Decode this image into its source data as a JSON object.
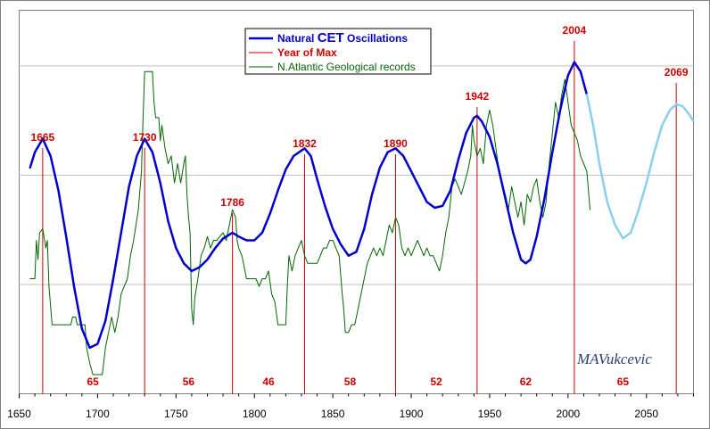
{
  "chart_data": {
    "type": "line",
    "title": "",
    "xlabel": "",
    "ylabel": "",
    "xlim": [
      1650,
      2080
    ],
    "ylim": [
      0,
      100
    ],
    "x_ticks": [
      "1650",
      "1700",
      "1750",
      "1800",
      "1850",
      "1900",
      "1950",
      "2000",
      "2050"
    ],
    "grid": "horizontal",
    "legend_position": "top-center",
    "legend": {
      "natural_prefix": "Natural ",
      "natural_cet": "CET",
      "natural_suffix": " Oscillations",
      "year_of_max": "Year of Max",
      "geological": "N.Atlantic Geological records"
    },
    "colors": {
      "natural": "#0000cc",
      "projection": "#88d0f0",
      "year_of_max": "#cc0000",
      "geological": "#006600",
      "grid": "#c0c0c0"
    },
    "year_of_max": [
      {
        "year": 1665,
        "label": "1665"
      },
      {
        "year": 1730,
        "label": "1730"
      },
      {
        "year": 1786,
        "label": "1786"
      },
      {
        "year": 1832,
        "label": "1832"
      },
      {
        "year": 1890,
        "label": "1890"
      },
      {
        "year": 1942,
        "label": "1942"
      },
      {
        "year": 2004,
        "label": "2004"
      },
      {
        "year": 2069,
        "label": "2069"
      }
    ],
    "interval_labels": [
      {
        "x": 1697,
        "label": "65"
      },
      {
        "x": 1758,
        "label": "56"
      },
      {
        "x": 1809,
        "label": "46"
      },
      {
        "x": 1861,
        "label": "58"
      },
      {
        "x": 1916,
        "label": "52"
      },
      {
        "x": 1973,
        "label": "62"
      },
      {
        "x": 2035,
        "label": "65"
      }
    ],
    "signature": "MAVukcevic",
    "series": [
      {
        "name": "Natural CET Oscillations",
        "style": "natural",
        "points": [
          [
            1657,
            59
          ],
          [
            1660,
            63
          ],
          [
            1665,
            66.5
          ],
          [
            1670,
            62
          ],
          [
            1675,
            53
          ],
          [
            1680,
            41
          ],
          [
            1685,
            28
          ],
          [
            1690,
            17
          ],
          [
            1695,
            12
          ],
          [
            1700,
            13
          ],
          [
            1705,
            19
          ],
          [
            1710,
            30
          ],
          [
            1715,
            42
          ],
          [
            1720,
            54
          ],
          [
            1725,
            62
          ],
          [
            1730,
            66.5
          ],
          [
            1735,
            63
          ],
          [
            1740,
            55
          ],
          [
            1745,
            45
          ],
          [
            1750,
            38
          ],
          [
            1755,
            34
          ],
          [
            1760,
            32
          ],
          [
            1765,
            33
          ],
          [
            1770,
            35
          ],
          [
            1775,
            38
          ],
          [
            1780,
            40.5
          ],
          [
            1786,
            42
          ],
          [
            1790,
            41
          ],
          [
            1795,
            40
          ],
          [
            1800,
            40
          ],
          [
            1805,
            42
          ],
          [
            1810,
            47
          ],
          [
            1815,
            53
          ],
          [
            1820,
            58.5
          ],
          [
            1825,
            62
          ],
          [
            1832,
            64
          ],
          [
            1836,
            62
          ],
          [
            1840,
            56
          ],
          [
            1845,
            49
          ],
          [
            1850,
            43
          ],
          [
            1855,
            39
          ],
          [
            1860,
            36
          ],
          [
            1865,
            37
          ],
          [
            1870,
            43
          ],
          [
            1875,
            52
          ],
          [
            1880,
            59
          ],
          [
            1885,
            63
          ],
          [
            1890,
            64
          ],
          [
            1895,
            62
          ],
          [
            1900,
            58
          ],
          [
            1905,
            54
          ],
          [
            1910,
            50
          ],
          [
            1915,
            48.5
          ],
          [
            1920,
            49
          ],
          [
            1925,
            53
          ],
          [
            1930,
            61
          ],
          [
            1935,
            68
          ],
          [
            1940,
            72
          ],
          [
            1942,
            72.5
          ],
          [
            1945,
            71
          ],
          [
            1950,
            67
          ],
          [
            1955,
            60
          ],
          [
            1960,
            51
          ],
          [
            1965,
            42
          ],
          [
            1970,
            35
          ],
          [
            1973,
            34
          ],
          [
            1976,
            35
          ],
          [
            1980,
            41
          ],
          [
            1985,
            51
          ],
          [
            1990,
            63
          ],
          [
            1995,
            74
          ],
          [
            2000,
            83
          ],
          [
            2004,
            86.5
          ],
          [
            2008,
            84
          ],
          [
            2012,
            78
          ]
        ]
      },
      {
        "name": "Natural CET Oscillations (projection)",
        "style": "projection",
        "points": [
          [
            2012,
            78
          ],
          [
            2016,
            70
          ],
          [
            2020,
            60
          ],
          [
            2025,
            50
          ],
          [
            2030,
            44
          ],
          [
            2035,
            40.5
          ],
          [
            2040,
            42
          ],
          [
            2045,
            48
          ],
          [
            2050,
            55
          ],
          [
            2055,
            63
          ],
          [
            2060,
            70
          ],
          [
            2065,
            74
          ],
          [
            2069,
            75.5
          ],
          [
            2073,
            75
          ],
          [
            2077,
            73
          ],
          [
            2080,
            71
          ]
        ]
      },
      {
        "name": "N.Atlantic Geological records",
        "style": "geological",
        "points": [
          [
            1657,
            30
          ],
          [
            1660,
            30
          ],
          [
            1661,
            40
          ],
          [
            1662,
            35
          ],
          [
            1663,
            42
          ],
          [
            1665,
            43
          ],
          [
            1667,
            38
          ],
          [
            1668,
            40
          ],
          [
            1669,
            28
          ],
          [
            1671,
            18
          ],
          [
            1676,
            18
          ],
          [
            1683,
            18
          ],
          [
            1684,
            20
          ],
          [
            1686,
            20
          ],
          [
            1687,
            18
          ],
          [
            1692,
            18
          ],
          [
            1693,
            12
          ],
          [
            1695,
            8
          ],
          [
            1697,
            5
          ],
          [
            1700,
            5
          ],
          [
            1703,
            5
          ],
          [
            1705,
            12
          ],
          [
            1707,
            16
          ],
          [
            1709,
            20
          ],
          [
            1711,
            16
          ],
          [
            1713,
            20
          ],
          [
            1715,
            26
          ],
          [
            1717,
            28
          ],
          [
            1719,
            30
          ],
          [
            1721,
            36
          ],
          [
            1723,
            40
          ],
          [
            1726,
            48
          ],
          [
            1728,
            58
          ],
          [
            1729,
            72
          ],
          [
            1730,
            84
          ],
          [
            1735,
            84
          ],
          [
            1736,
            76
          ],
          [
            1737,
            72
          ],
          [
            1739,
            72
          ],
          [
            1740,
            66
          ],
          [
            1741,
            70
          ],
          [
            1743,
            64
          ],
          [
            1745,
            60
          ],
          [
            1747,
            62
          ],
          [
            1749,
            55
          ],
          [
            1751,
            60
          ],
          [
            1753,
            55
          ],
          [
            1755,
            60
          ],
          [
            1756,
            62
          ],
          [
            1757,
            52
          ],
          [
            1758,
            46
          ],
          [
            1759,
            42
          ],
          [
            1760,
            22
          ],
          [
            1761,
            18
          ],
          [
            1762,
            25
          ],
          [
            1764,
            30
          ],
          [
            1766,
            36
          ],
          [
            1768,
            38
          ],
          [
            1770,
            41
          ],
          [
            1772,
            38
          ],
          [
            1774,
            40
          ],
          [
            1776,
            40
          ],
          [
            1778,
            41
          ],
          [
            1780,
            42
          ],
          [
            1782,
            40
          ],
          [
            1784,
            44
          ],
          [
            1786,
            48
          ],
          [
            1788,
            46
          ],
          [
            1789,
            40
          ],
          [
            1790,
            38
          ],
          [
            1792,
            36
          ],
          [
            1795,
            30
          ],
          [
            1797,
            30
          ],
          [
            1799,
            30
          ],
          [
            1801,
            30
          ],
          [
            1803,
            28
          ],
          [
            1805,
            30
          ],
          [
            1807,
            30
          ],
          [
            1809,
            32
          ],
          [
            1811,
            26
          ],
          [
            1813,
            24
          ],
          [
            1815,
            18
          ],
          [
            1817,
            18
          ],
          [
            1820,
            18
          ],
          [
            1821,
            28
          ],
          [
            1822,
            36
          ],
          [
            1824,
            32
          ],
          [
            1826,
            36
          ],
          [
            1828,
            38
          ],
          [
            1830,
            40
          ],
          [
            1832,
            36
          ],
          [
            1834,
            34
          ],
          [
            1836,
            34
          ],
          [
            1838,
            34
          ],
          [
            1840,
            34
          ],
          [
            1842,
            36
          ],
          [
            1844,
            38
          ],
          [
            1846,
            38
          ],
          [
            1848,
            40
          ],
          [
            1850,
            40
          ],
          [
            1852,
            38
          ],
          [
            1854,
            36
          ],
          [
            1856,
            26
          ],
          [
            1857,
            22
          ],
          [
            1858,
            16
          ],
          [
            1860,
            16
          ],
          [
            1862,
            18
          ],
          [
            1864,
            18
          ],
          [
            1866,
            22
          ],
          [
            1868,
            26
          ],
          [
            1870,
            30
          ],
          [
            1872,
            34
          ],
          [
            1874,
            36
          ],
          [
            1876,
            38
          ],
          [
            1878,
            36
          ],
          [
            1880,
            38
          ],
          [
            1882,
            36
          ],
          [
            1884,
            40
          ],
          [
            1886,
            44
          ],
          [
            1888,
            42
          ],
          [
            1890,
            46
          ],
          [
            1892,
            44
          ],
          [
            1894,
            38
          ],
          [
            1896,
            36
          ],
          [
            1898,
            38
          ],
          [
            1900,
            36
          ],
          [
            1902,
            38
          ],
          [
            1904,
            40
          ],
          [
            1906,
            38
          ],
          [
            1908,
            36
          ],
          [
            1910,
            38
          ],
          [
            1912,
            36
          ],
          [
            1914,
            36
          ],
          [
            1916,
            34
          ],
          [
            1918,
            32
          ],
          [
            1920,
            36
          ],
          [
            1922,
            42
          ],
          [
            1924,
            46
          ],
          [
            1926,
            54
          ],
          [
            1928,
            56
          ],
          [
            1930,
            54
          ],
          [
            1932,
            52
          ],
          [
            1934,
            55
          ],
          [
            1936,
            58
          ],
          [
            1938,
            62
          ],
          [
            1939,
            70
          ],
          [
            1940,
            66
          ],
          [
            1942,
            62
          ],
          [
            1944,
            64
          ],
          [
            1946,
            60
          ],
          [
            1948,
            70
          ],
          [
            1950,
            74
          ],
          [
            1952,
            70
          ],
          [
            1954,
            64
          ],
          [
            1956,
            58
          ],
          [
            1958,
            54
          ],
          [
            1960,
            52
          ],
          [
            1962,
            48
          ],
          [
            1964,
            54
          ],
          [
            1966,
            50
          ],
          [
            1968,
            46
          ],
          [
            1970,
            50
          ],
          [
            1972,
            44
          ],
          [
            1974,
            52
          ],
          [
            1976,
            50
          ],
          [
            1978,
            54
          ],
          [
            1980,
            56
          ],
          [
            1982,
            50
          ],
          [
            1984,
            46
          ],
          [
            1986,
            50
          ],
          [
            1988,
            60
          ],
          [
            1990,
            68
          ],
          [
            1992,
            76
          ],
          [
            1994,
            72
          ],
          [
            1996,
            78
          ],
          [
            1998,
            82
          ],
          [
            2000,
            76
          ],
          [
            2002,
            70
          ],
          [
            2004,
            68
          ],
          [
            2006,
            66
          ],
          [
            2008,
            62
          ],
          [
            2010,
            60
          ],
          [
            2012,
            58
          ],
          [
            2014,
            48
          ]
        ]
      }
    ]
  }
}
